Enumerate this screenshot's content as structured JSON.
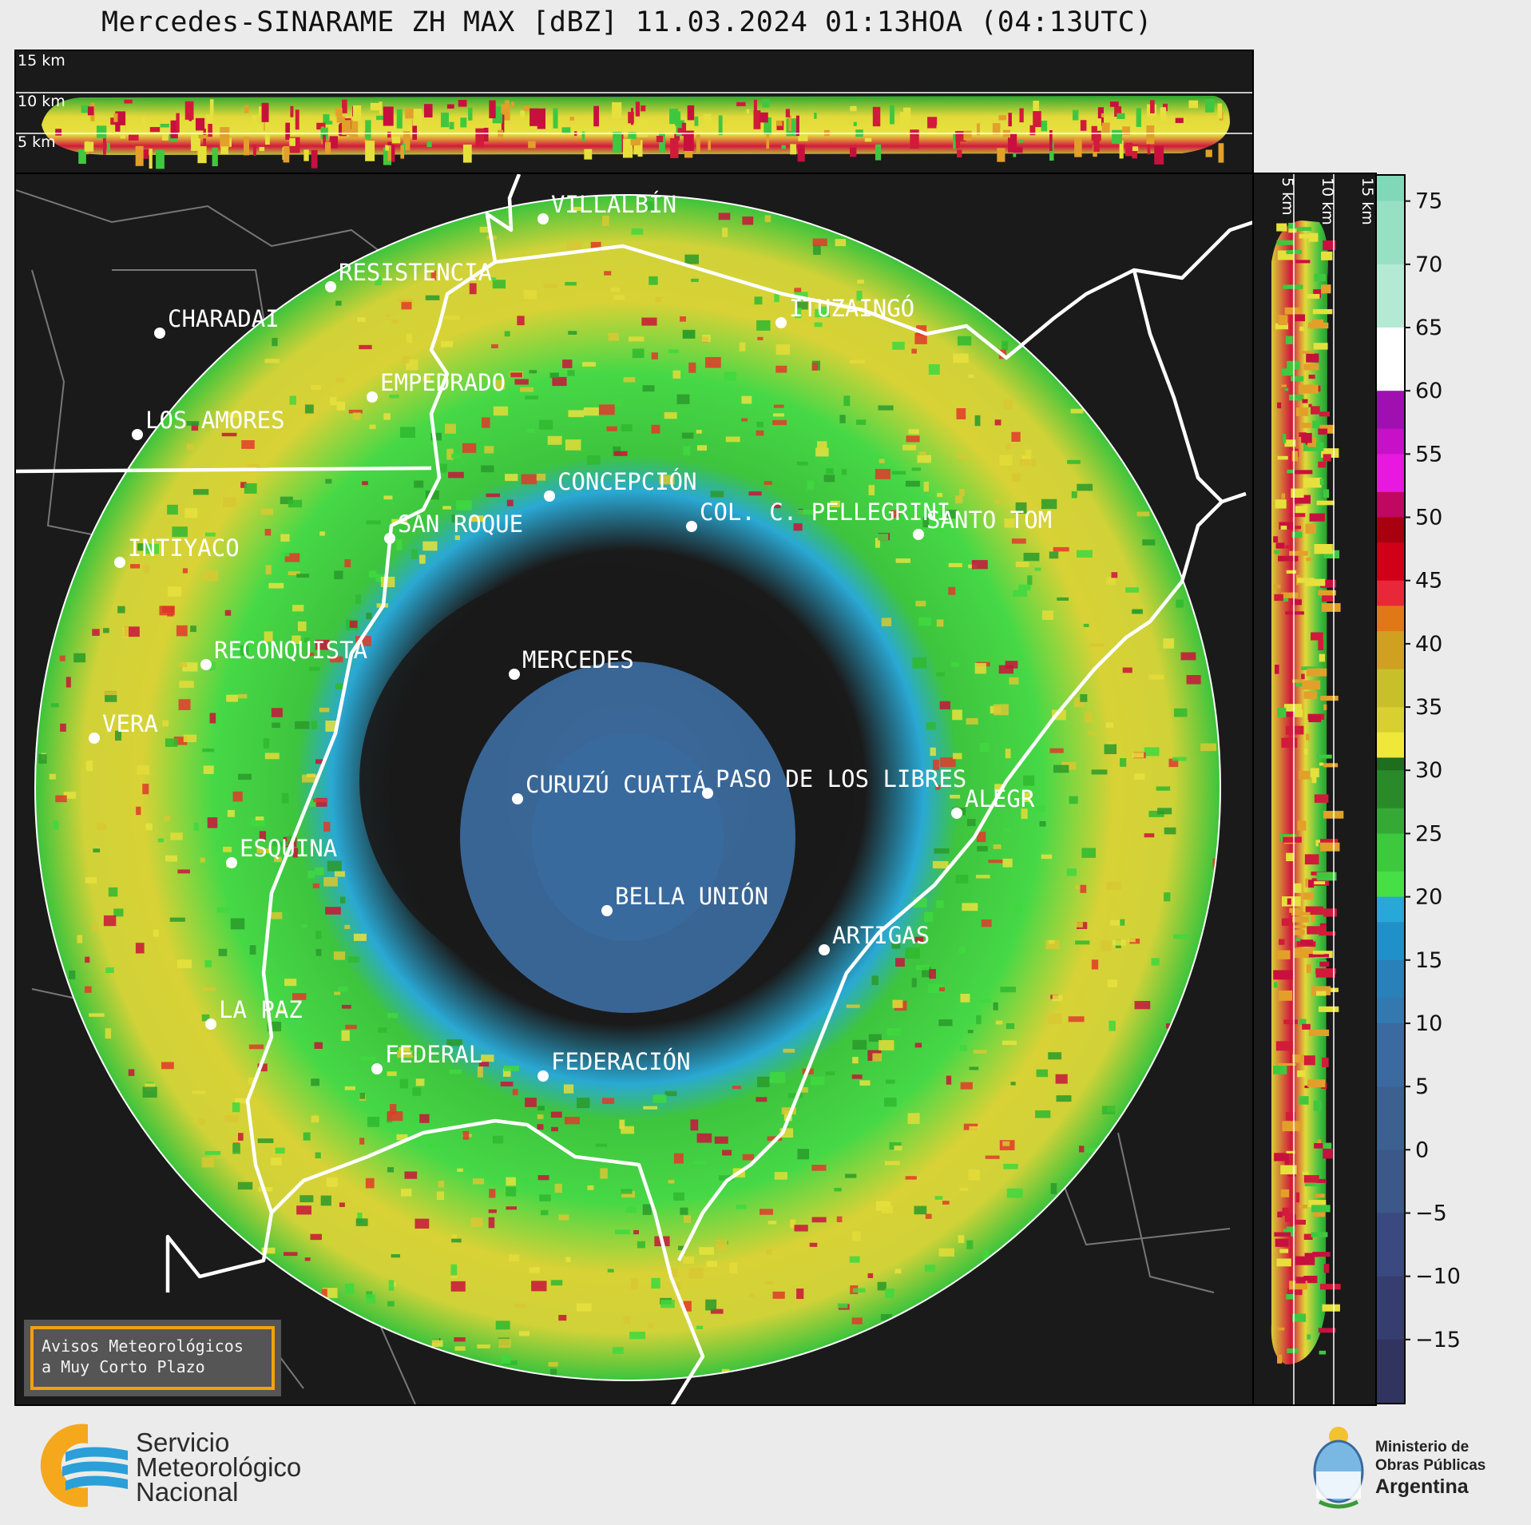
{
  "title": "Mercedes-SINARAME ZH MAX [dBZ] 11.03.2024 01:13HOA (04:13UTC)",
  "top_profile": {
    "height_labels": [
      "15 km",
      "10 km",
      "5 km"
    ]
  },
  "side_profile": {
    "height_labels": [
      "5 km",
      "10 km",
      "15 km"
    ]
  },
  "colorbar": {
    "ticks": [
      "75",
      "70",
      "65",
      "60",
      "55",
      "50",
      "45",
      "40",
      "35",
      "30",
      "25",
      "20",
      "15",
      "10",
      "5",
      "0",
      "−5",
      "−10",
      "−15"
    ],
    "min_value": -20,
    "max_value": 77
  },
  "cities": [
    {
      "name": "VILLALBÍN"
    },
    {
      "name": "RESISTENCIA"
    },
    {
      "name": "ITUZAINGÓ"
    },
    {
      "name": "CHARADAI"
    },
    {
      "name": "EMPEDRADO"
    },
    {
      "name": "LOS AMORES"
    },
    {
      "name": "CONCEPCIÓN"
    },
    {
      "name": "COL. C. PELLEGRINI"
    },
    {
      "name": "SANTO TOM"
    },
    {
      "name": "SAN ROQUE"
    },
    {
      "name": "INTIYACO"
    },
    {
      "name": "MERCEDES"
    },
    {
      "name": "RECONQUISTA"
    },
    {
      "name": "VERA"
    },
    {
      "name": "CURUZÚ CUATIÁ"
    },
    {
      "name": "PASO DE LOS LIBRES"
    },
    {
      "name": "ALEGR"
    },
    {
      "name": "ESQUINA"
    },
    {
      "name": "BELLA UNIÓN"
    },
    {
      "name": "ARTIGAS"
    },
    {
      "name": "LA PAZ"
    },
    {
      "name": "FEDERAL"
    },
    {
      "name": "FEDERACIÓN"
    }
  ],
  "avisos": {
    "line1": "Avisos Meteorológicos",
    "line2": "a Muy Corto Plazo"
  },
  "smn": {
    "line1": "Servicio",
    "line2": "Meteorológico",
    "line3": "Nacional"
  },
  "ministry": {
    "line1": "Ministerio de",
    "line2": "Obras Públicas",
    "line3": "Argentina"
  }
}
